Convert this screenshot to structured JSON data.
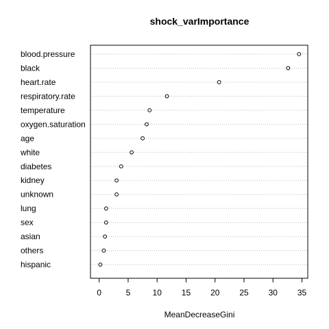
{
  "chart_data": {
    "type": "dotchart",
    "title": "shock_varImportance",
    "xlabel": "MeanDecreaseGini",
    "ylabel": "",
    "xlim": [
      -1.5,
      36
    ],
    "xticks": [
      0,
      5,
      10,
      15,
      20,
      25,
      30,
      35
    ],
    "grid": "dotted horizontal lines per category",
    "categories": [
      "blood.pressure",
      "black",
      "heart.rate",
      "respiratory.rate",
      "temperature",
      "oxygen.saturation",
      "age",
      "white",
      "diabetes",
      "kidney",
      "unknown",
      "lung",
      "sex",
      "asian",
      "others",
      "hispanic"
    ],
    "values": [
      34.5,
      32.6,
      20.7,
      11.7,
      8.7,
      8.2,
      7.5,
      5.6,
      3.8,
      3.0,
      3.0,
      1.2,
      1.2,
      1.0,
      0.8,
      0.2
    ]
  }
}
